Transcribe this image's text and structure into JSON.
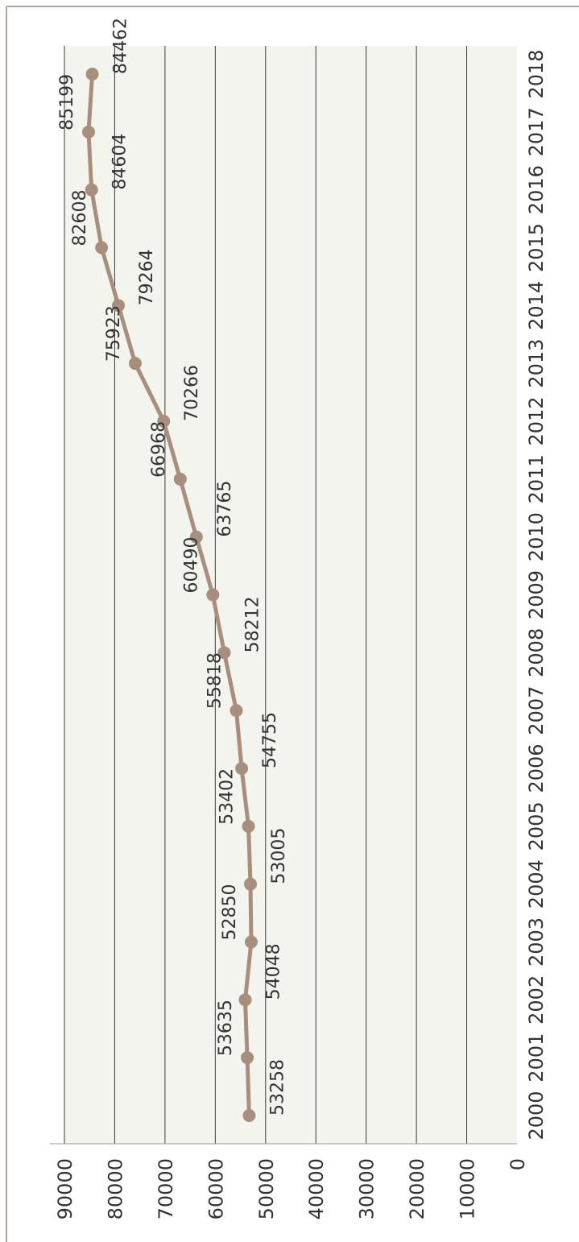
{
  "colors": {
    "frame": "#b7a69a",
    "plot_background": "#f4f4ef",
    "gridline": "#3a3a3a",
    "line": "#a88e7c",
    "text": "#333333"
  },
  "chart_data": {
    "type": "line",
    "orientation": "rotated-90-ccw",
    "title": "",
    "xlabel": "",
    "ylabel": "",
    "categories": [
      "2000",
      "2001",
      "2002",
      "2003",
      "2004",
      "2005",
      "2006",
      "2007",
      "2008",
      "2009",
      "2010",
      "2011",
      "2012",
      "2013",
      "2014",
      "2015",
      "2016",
      "2017",
      "2018"
    ],
    "series": [
      {
        "values": [
          53258,
          53635,
          54048,
          52850,
          53005,
          53402,
          54755,
          55818,
          58212,
          60490,
          63765,
          66968,
          70266,
          75923,
          79264,
          82608,
          84604,
          85199,
          84462
        ],
        "data_labels": [
          "53258",
          "53635",
          "54048",
          "52850",
          "53005",
          "53402",
          "54755",
          "55818",
          "58212",
          "60490",
          "63765",
          "66968",
          "70266",
          "75923",
          "79264",
          "82608",
          "84604",
          "85199",
          "84462"
        ]
      }
    ],
    "ylim": [
      0,
      90000
    ],
    "y_ticks": [
      "0",
      "10000",
      "20000",
      "30000",
      "40000",
      "50000",
      "60000",
      "70000",
      "80000",
      "90000"
    ],
    "grid": true
  }
}
